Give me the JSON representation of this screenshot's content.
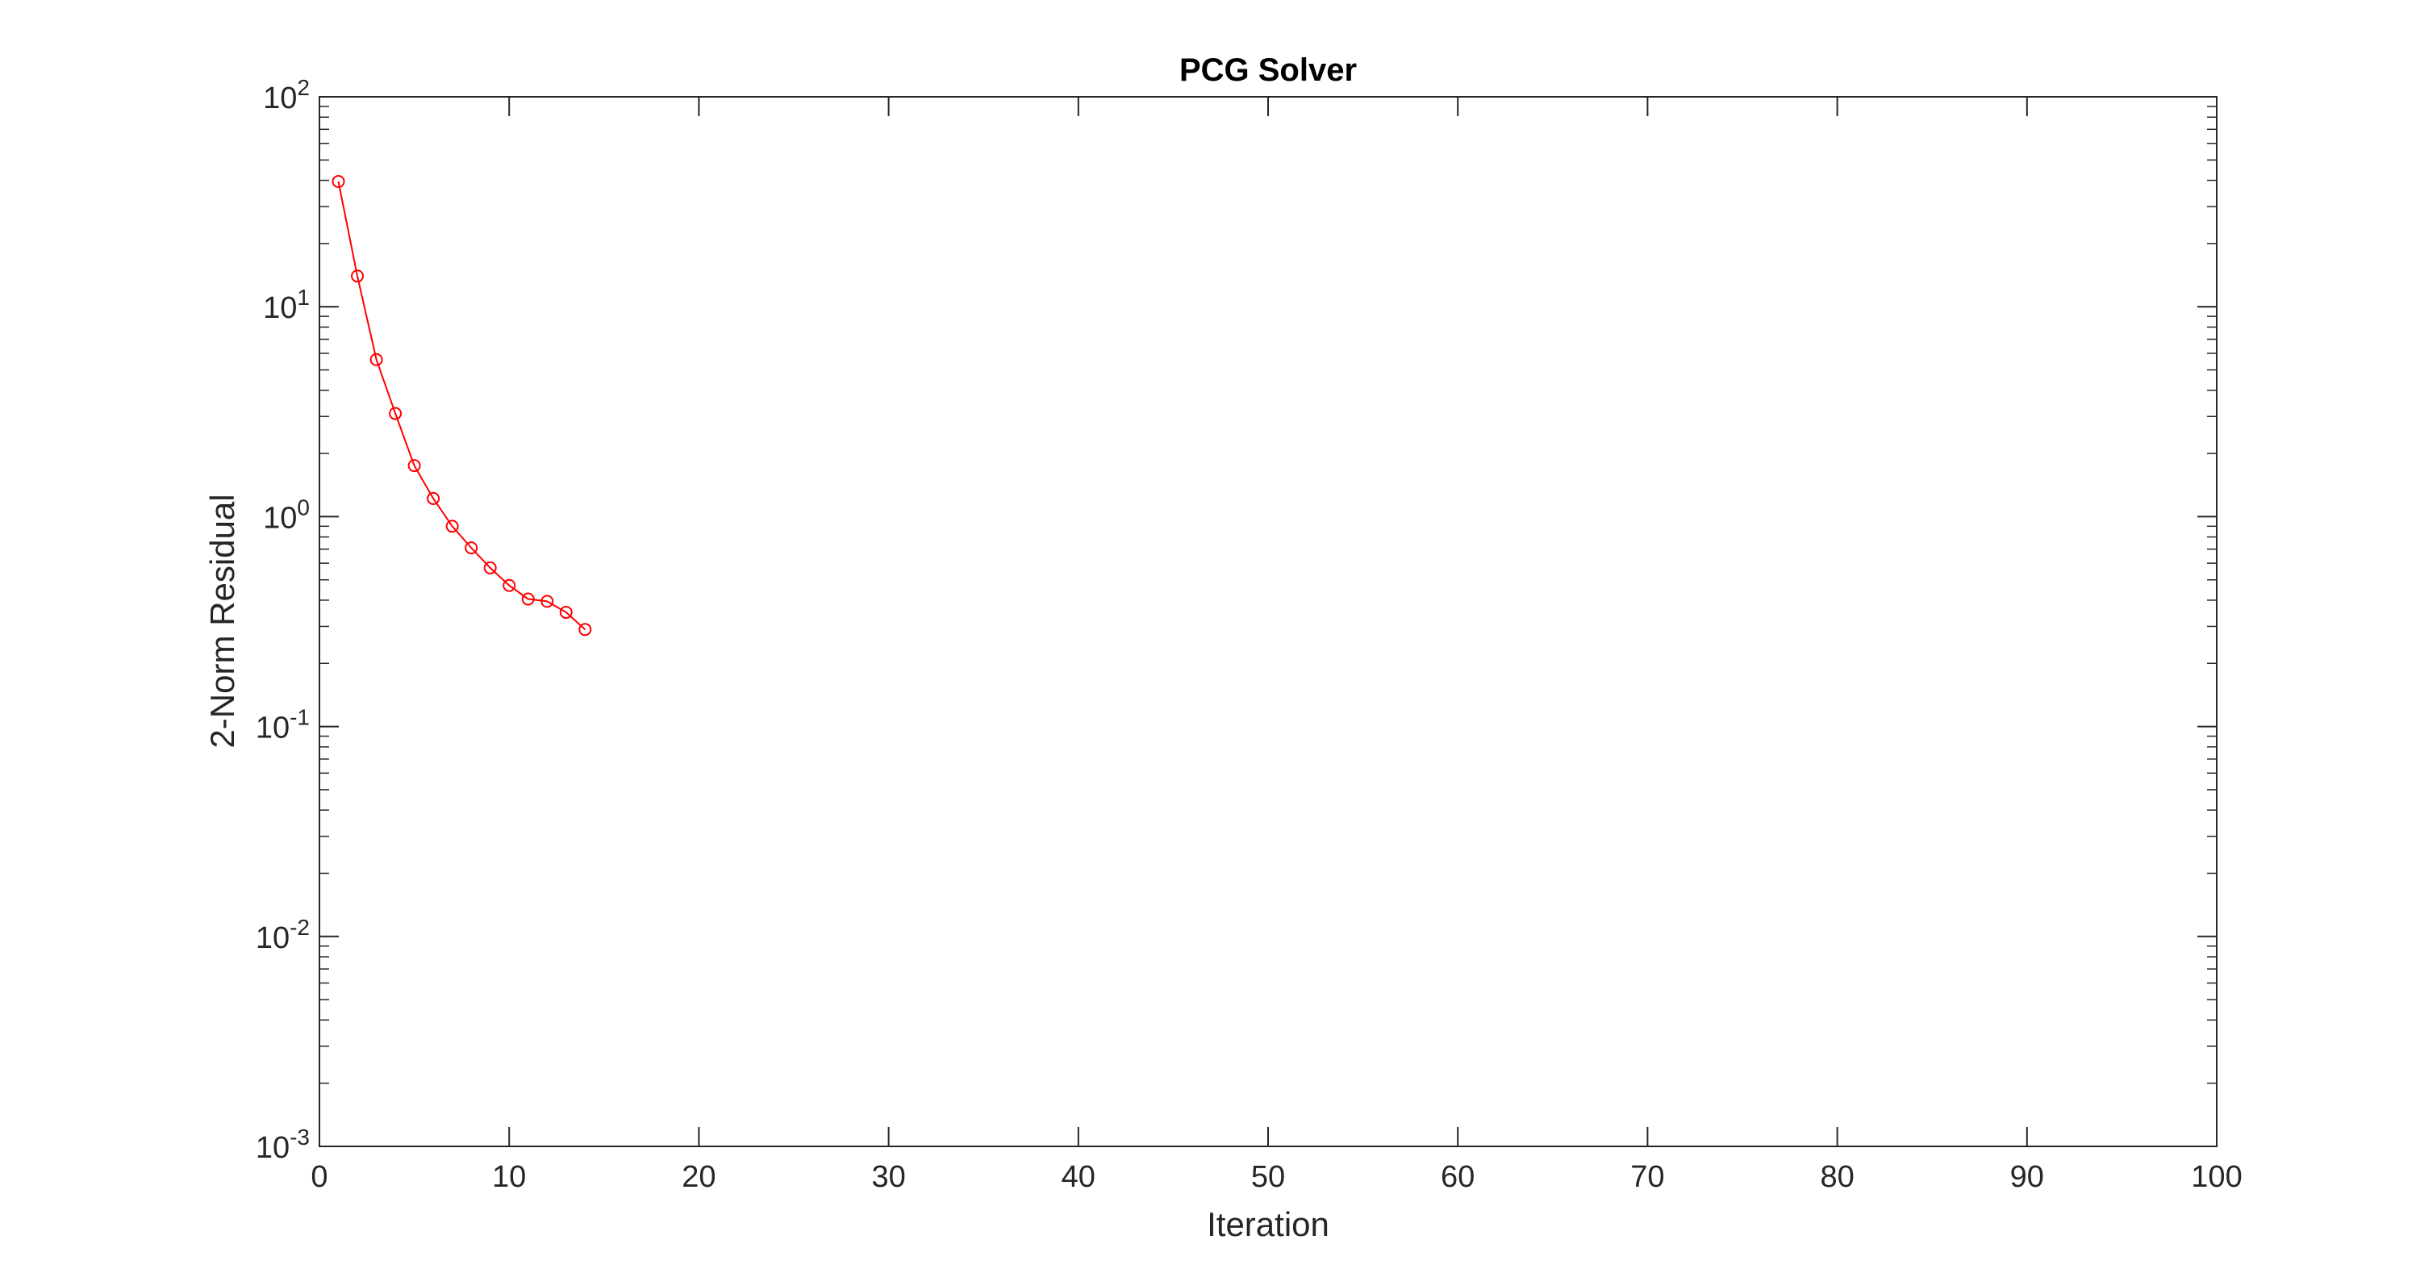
{
  "chart_data": {
    "type": "line",
    "title": "PCG Solver",
    "xlabel": "Iteration",
    "ylabel": "2-Norm Residual",
    "xlim": [
      0,
      100
    ],
    "ylim": [
      0.001,
      100
    ],
    "yscale": "log",
    "grid": false,
    "box": true,
    "x_ticks": [
      0,
      10,
      20,
      30,
      40,
      50,
      60,
      70,
      80,
      90,
      100
    ],
    "y_ticks": [
      {
        "value": 0.001,
        "base": "10",
        "exp": "-3"
      },
      {
        "value": 0.01,
        "base": "10",
        "exp": "-2"
      },
      {
        "value": 0.1,
        "base": "10",
        "exp": "-1"
      },
      {
        "value": 1,
        "base": "10",
        "exp": "0"
      },
      {
        "value": 10,
        "base": "10",
        "exp": "1"
      },
      {
        "value": 100,
        "base": "10",
        "exp": "2"
      }
    ],
    "series": [
      {
        "color": "#ff0000",
        "marker": "circle",
        "x": [
          1,
          2,
          3,
          4,
          5,
          6,
          7,
          8,
          9,
          10,
          11,
          12,
          13,
          14
        ],
        "y": [
          39.5,
          14.0,
          5.6,
          3.1,
          1.75,
          1.22,
          0.9,
          0.71,
          0.57,
          0.47,
          0.405,
          0.395,
          0.35,
          0.29
        ]
      }
    ]
  }
}
